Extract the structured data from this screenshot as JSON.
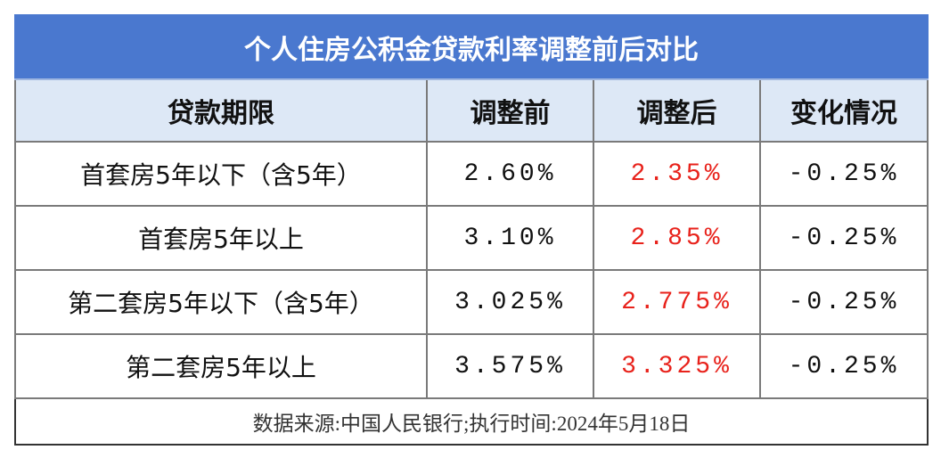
{
  "table": {
    "title": "个人住房公积金贷款利率调整前后对比",
    "columns": [
      "贷款期限",
      "调整前",
      "调整后",
      "变化情况"
    ],
    "rows": [
      [
        "首套房5年以下（含5年）",
        "2.60%",
        "2.35%",
        "-0.25%"
      ],
      [
        "首套房5年以上",
        "3.10%",
        "2.85%",
        "-0.25%"
      ],
      [
        "第二套房5年以下（含5年）",
        "3.025%",
        "2.775%",
        "-0.25%"
      ],
      [
        "第二套房5年以上",
        "3.575%",
        "3.325%",
        "-0.25%"
      ]
    ],
    "footer": "数据来源:中国人民银行;执行时间:2024年5月18日"
  }
}
